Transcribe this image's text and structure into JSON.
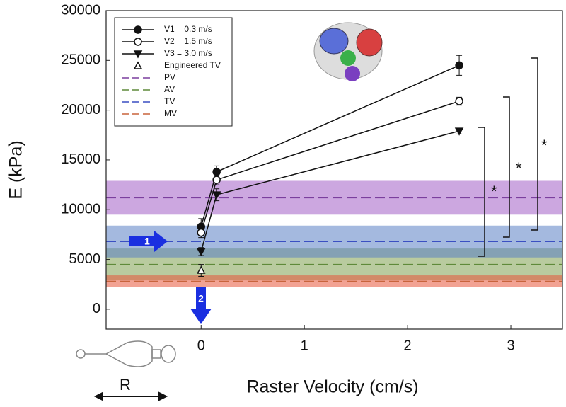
{
  "chart_data": {
    "type": "line",
    "xlabel": "Raster Velocity (cm/s)",
    "ylabel": "E (kPa)",
    "xlim": [
      -0.92,
      3.5
    ],
    "ylim": [
      -2000,
      30000
    ],
    "xticks": [
      0,
      1,
      2,
      3
    ],
    "yticks": [
      0,
      5000,
      10000,
      15000,
      20000,
      25000,
      30000
    ],
    "series": [
      {
        "name": "V1 = 0.3 m/s",
        "color": "#111111",
        "marker": "circle-filled",
        "x": [
          0,
          0.15,
          2.5
        ],
        "values": [
          8300,
          13800,
          24500
        ],
        "errors": [
          800,
          600,
          1000
        ]
      },
      {
        "name": "V2 = 1.5 m/s",
        "color": "#111111",
        "marker": "circle-open",
        "x": [
          0,
          0.15,
          2.5
        ],
        "values": [
          7700,
          13000,
          20900
        ],
        "errors": [
          500,
          500,
          400
        ]
      },
      {
        "name": "V3 = 3.0 m/s",
        "color": "#111111",
        "marker": "triangle-down",
        "x": [
          0,
          0.15,
          2.5
        ],
        "values": [
          5800,
          11500,
          17900
        ],
        "errors": [
          400,
          600,
          300
        ]
      },
      {
        "name": "Engineered TV",
        "color": "#111111",
        "marker": "triangle-open",
        "x": [
          0
        ],
        "values": [
          3900
        ],
        "errors": [
          600
        ]
      }
    ],
    "reference_bands": [
      {
        "name": "PV",
        "color": "#7b3f9e",
        "fill": "#a35fc7",
        "mean": 11200,
        "spread": 1700
      },
      {
        "name": "AV",
        "color": "#5f8a3a",
        "fill": "#7fa050",
        "mean": 4500,
        "spread": 1600
      },
      {
        "name": "TV",
        "color": "#3a4fc2",
        "fill": "#5a7fc4",
        "mean": 6800,
        "spread": 1600
      },
      {
        "name": "MV",
        "color": "#c8643c",
        "fill": "#e8563a",
        "mean": 2800,
        "spread": 600
      }
    ],
    "annotations": [
      "1",
      "2",
      "R",
      "*",
      "*",
      "*"
    ]
  }
}
